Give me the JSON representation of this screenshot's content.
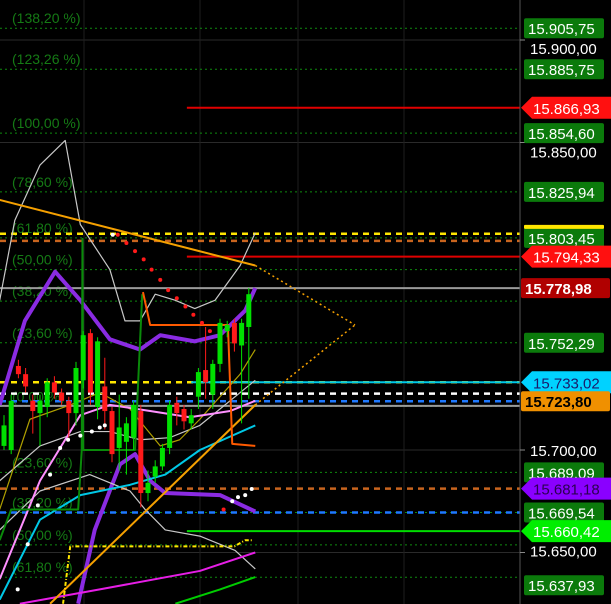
{
  "chart_data": {
    "type": "candlestick",
    "grid": true,
    "colors": {
      "background": "#000000",
      "up": "#00e000",
      "down": "#ff1a1a",
      "fib": "#0f8a0f",
      "fib_text": "#157a15",
      "axis_text": "#ffffff",
      "axis_line": "#555555"
    },
    "price_axis": {
      "ticks": [
        15900,
        15850,
        15700,
        15650
      ],
      "tick_labels": [
        "15.900,00",
        "15.850,00",
        "15.700,00",
        "15.650,00"
      ]
    },
    "candles_ohlc": [
      [
        15702,
        15717,
        15700,
        15712
      ],
      [
        15700,
        15727,
        15698,
        15724
      ],
      [
        15741,
        15744,
        15735,
        15737
      ],
      [
        15737,
        15740,
        15728,
        15731
      ],
      [
        15724,
        15727,
        15708,
        15719
      ],
      [
        15718,
        15727,
        15702,
        15724
      ],
      [
        15721,
        15735,
        15716,
        15733
      ],
      [
        15733,
        15736,
        15725,
        15728
      ],
      [
        15728,
        15730,
        15722,
        15724
      ],
      [
        15724,
        15726,
        15706,
        15718
      ],
      [
        15718,
        15743,
        15712,
        15740
      ],
      [
        15734,
        15758,
        15730,
        15756
      ],
      [
        15757,
        15759,
        15722,
        15728
      ],
      [
        15721,
        15755,
        15715,
        15753
      ],
      [
        15731,
        15745,
        15710,
        15719
      ],
      [
        15719,
        15721,
        15694,
        15698
      ],
      [
        15701,
        15727,
        15690,
        15711
      ],
      [
        15704,
        15716,
        15688,
        15713
      ],
      [
        15706,
        15724,
        15700,
        15722
      ],
      [
        15719,
        15722,
        15672,
        15679
      ],
      [
        15679,
        15690,
        15675,
        15684
      ],
      [
        15687,
        15695,
        15684,
        15692
      ],
      [
        15692,
        15703,
        15690,
        15701
      ],
      [
        15701,
        15724,
        15698,
        15722
      ],
      [
        15723,
        15726,
        15712,
        15718
      ],
      [
        15720,
        15722,
        15710,
        15714
      ],
      [
        15713,
        15720,
        15710,
        15717
      ],
      [
        15726,
        15740,
        15720,
        15738
      ],
      [
        15739,
        15760,
        15725,
        15733
      ],
      [
        15727,
        15744,
        15720,
        15742
      ],
      [
        15742,
        15764,
        15738,
        15762
      ],
      [
        15758,
        15763,
        15755,
        15761
      ],
      [
        15762,
        15764,
        15748,
        15752
      ],
      [
        15751,
        15764,
        15713,
        15762
      ],
      [
        15760,
        15779,
        15725,
        15776
      ]
    ],
    "fib_levels": [
      {
        "label": "(138,20 %)",
        "price": 15905.75
      },
      {
        "label": "(123,26 %)",
        "price": 15885.75
      },
      {
        "label": "(100,00 %)",
        "price": 15854.6
      },
      {
        "label": "(78,60 %)",
        "price": 15825.94
      },
      {
        "label": "(61,80 %)",
        "price": 15803.45
      },
      {
        "label": "(50,00 %)",
        "price": 15788.0
      },
      {
        "label": "(38,20 %)",
        "price": 15772.6
      },
      {
        "label": "(23,60 %)",
        "price": 15752.29
      },
      {
        "label": "(0,00 %)",
        "price": 15721.3
      },
      {
        "label": "(23,60 %)",
        "price": 15689.09
      },
      {
        "label": "(38,20 %)",
        "price": 15669.54
      },
      {
        "label": "(50,00 %)",
        "price": 15653.74
      },
      {
        "label": "(61,80 %)",
        "price": 15637.93
      }
    ],
    "horizontal_lines": [
      {
        "price": 15866.93,
        "color": "#e00000",
        "style": "solid",
        "from_bar": 25.4
      },
      {
        "price": 15794.33,
        "color": "#e00000",
        "style": "solid",
        "from_bar": 25.4
      },
      {
        "price": 15805.5,
        "color": "#ffe600",
        "style": "dashed",
        "from_bar": -1
      },
      {
        "price": 15802.0,
        "color": "#c8641e",
        "style": "dashed",
        "from_bar": -1
      },
      {
        "price": 15778.98,
        "color": "#9a9a9a",
        "style": "solid",
        "from_bar": -1
      },
      {
        "price": 15733.02,
        "color": "#ffe600",
        "style": "dashed",
        "from_bar": -1
      },
      {
        "price": 15733.02,
        "color": "#00c8e6",
        "style": "solid",
        "from_bar": 26
      },
      {
        "price": 15727.5,
        "color": "#ffffff",
        "style": "dashed",
        "from_bar": -1
      },
      {
        "price": 15723.8,
        "color": "#1e78ff",
        "style": "dashed",
        "from_bar": -1
      },
      {
        "price": 15721.5,
        "color": "#9a9a9a",
        "style": "solid",
        "from_bar": -1
      },
      {
        "price": 15681.18,
        "color": "#c8641e",
        "style": "dashed",
        "from_bar": -1
      },
      {
        "price": 15669.54,
        "color": "#1e78ff",
        "style": "dashed",
        "from_bar": -1
      },
      {
        "price": 15660.42,
        "color": "#00dd00",
        "style": "solid",
        "from_bar": 25.4
      }
    ],
    "indicator_lines": [
      {
        "color": "#8a2be2",
        "width": 4,
        "points": [
          [
            -0.6,
            15722
          ],
          [
            2.9,
            15763
          ],
          [
            7.1,
            15787
          ],
          [
            10.6,
            15773
          ],
          [
            14.7,
            15754
          ],
          [
            18.9,
            15749
          ],
          [
            21.7,
            15756
          ],
          [
            26.5,
            15753
          ],
          [
            30,
            15756
          ],
          [
            33.5,
            15768
          ],
          [
            34.9,
            15779
          ]
        ]
      },
      {
        "color": "#8a2be2",
        "width": 4,
        "points": [
          [
            10.3,
            15625
          ],
          [
            12.6,
            15661
          ],
          [
            16.1,
            15693
          ],
          [
            18.2,
            15698
          ],
          [
            20.3,
            15685
          ],
          [
            22.4,
            15679
          ],
          [
            30,
            15678
          ],
          [
            34.9,
            15670
          ]
        ]
      },
      {
        "color": "#c8c8c8",
        "width": 1.2,
        "points": [
          [
            -0.6,
            15773
          ],
          [
            1.5,
            15812
          ],
          [
            5,
            15839
          ],
          [
            8.5,
            15851
          ],
          [
            10.6,
            15810
          ],
          [
            14.7,
            15788
          ],
          [
            16.8,
            15763
          ],
          [
            18.9,
            15763
          ],
          [
            21,
            15776
          ],
          [
            23.8,
            15773
          ],
          [
            26.5,
            15769
          ],
          [
            29.3,
            15773
          ],
          [
            32.8,
            15790
          ],
          [
            34.9,
            15806
          ]
        ]
      },
      {
        "color": "#c8c8c8",
        "width": 1.2,
        "points": [
          [
            -0.6,
            15661
          ],
          [
            5,
            15680
          ],
          [
            11.9,
            15688
          ],
          [
            17.5,
            15680
          ],
          [
            19.6,
            15671
          ],
          [
            22.4,
            15661
          ],
          [
            27.2,
            15658
          ],
          [
            32.1,
            15651
          ],
          [
            34.9,
            15642
          ]
        ]
      },
      {
        "color": "#c8c8c8",
        "width": 1.2,
        "points": [
          [
            -0.6,
            15685
          ],
          [
            5,
            15702
          ],
          [
            10.6,
            15709
          ],
          [
            14.7,
            15709
          ],
          [
            18.9,
            15705
          ],
          [
            23,
            15706
          ],
          [
            27.2,
            15712
          ],
          [
            34.9,
            15734
          ]
        ]
      },
      {
        "color": "#b0a000",
        "width": 1.2,
        "points": [
          [
            -0.6,
            15671
          ],
          [
            3.6,
            15715
          ],
          [
            9.2,
            15722
          ],
          [
            13.3,
            15728
          ],
          [
            17.5,
            15720
          ],
          [
            21.7,
            15702
          ],
          [
            24.4,
            15705
          ],
          [
            27.2,
            15715
          ],
          [
            32.8,
            15737
          ],
          [
            34.9,
            15749
          ]
        ]
      },
      {
        "color": "#00c8e6",
        "width": 2,
        "points": [
          [
            -0.6,
            15627
          ],
          [
            5,
            15666
          ],
          [
            10.6,
            15678
          ],
          [
            17.5,
            15683
          ],
          [
            22.4,
            15688
          ],
          [
            27.2,
            15700
          ],
          [
            34.9,
            15712
          ]
        ]
      },
      {
        "color": "#ff90ff",
        "width": 2,
        "points": [
          [
            -0.6,
            15637
          ],
          [
            5,
            15685
          ],
          [
            10.6,
            15717
          ],
          [
            14.7,
            15722
          ],
          [
            20.3,
            15719
          ],
          [
            25.8,
            15716
          ],
          [
            31.4,
            15719
          ],
          [
            34.9,
            15724
          ]
        ]
      },
      {
        "color": "#e61ee6",
        "width": 2,
        "points": [
          [
            2.2,
            15625
          ],
          [
            13.3,
            15632
          ],
          [
            27.2,
            15641
          ],
          [
            34.9,
            15650
          ]
        ]
      },
      {
        "color": "#00cc00",
        "width": 2,
        "points": [
          [
            23.8,
            15625
          ],
          [
            30,
            15632
          ],
          [
            34.9,
            15638
          ]
        ]
      },
      {
        "color": "#f5a000",
        "width": 2,
        "points": [
          [
            -0.6,
            15822
          ],
          [
            34.9,
            15790
          ]
        ]
      },
      {
        "color": "#f5a000",
        "width": 2,
        "points": [
          [
            6.4,
            15625
          ],
          [
            34.9,
            15722
          ]
        ]
      },
      {
        "color": "#f5a000",
        "width": 1.5,
        "dash": "2,3",
        "points": [
          [
            34.9,
            15790
          ],
          [
            48.75,
            15761
          ]
        ]
      },
      {
        "color": "#f5a000",
        "width": 1.5,
        "dash": "2,3",
        "points": [
          [
            34.9,
            15722
          ],
          [
            48.75,
            15761
          ]
        ]
      },
      {
        "color": "#0a8a0a",
        "width": 2,
        "points": [
          [
            -0.6,
            15656
          ],
          [
            1,
            15671
          ],
          [
            10.3,
            15671
          ],
          [
            10.8,
            15700
          ],
          [
            10.9,
            15803
          ],
          [
            11,
            15700
          ],
          [
            18.2,
            15700
          ],
          [
            19.2,
            15776
          ]
        ]
      },
      {
        "color": "#ff5a00",
        "width": 2,
        "points": [
          [
            19.3,
            15777
          ],
          [
            20.3,
            15761
          ],
          [
            31.1,
            15761
          ],
          [
            31.7,
            15703
          ],
          [
            34.9,
            15702
          ]
        ]
      },
      {
        "color": "#ffe600",
        "width": 2,
        "dash": "4,2,1,2",
        "points": [
          [
            8.2,
            15625
          ],
          [
            9.2,
            15653
          ],
          [
            32,
            15653
          ],
          [
            33.5,
            15656
          ],
          [
            34.5,
            15656
          ]
        ]
      }
    ],
    "sar_dots_red": [
      [
        15.8,
        15805
      ],
      [
        17,
        15801
      ],
      [
        18.2,
        15797
      ],
      [
        19.4,
        15793
      ],
      [
        20.5,
        15788
      ],
      [
        21.7,
        15783
      ],
      [
        22.8,
        15778
      ],
      [
        24,
        15774
      ],
      [
        25.2,
        15770
      ],
      [
        26.3,
        15766
      ],
      [
        27.5,
        15762
      ],
      [
        28.6,
        15758
      ],
      [
        30.5,
        15671
      ]
    ],
    "sar_dots_white": [
      [
        1.9,
        15632
      ],
      [
        3.3,
        15654
      ],
      [
        4.7,
        15673
      ],
      [
        6.4,
        15688
      ],
      [
        7.8,
        15701
      ],
      [
        8.9,
        15705
      ],
      [
        10.6,
        15707
      ],
      [
        12.2,
        15709
      ],
      [
        13.3,
        15711
      ],
      [
        14,
        15712
      ],
      [
        15.1,
        15805
      ],
      [
        31.7,
        15675
      ],
      [
        32.5,
        15677
      ],
      [
        33.5,
        15678
      ],
      [
        34.4,
        15681
      ]
    ],
    "price_labels": [
      {
        "text": "15.905,75",
        "price": 15905.75,
        "bg": "#0b7a0b",
        "fg": "#ffffff",
        "shape": "box"
      },
      {
        "text": "15.885,75",
        "price": 15885.75,
        "bg": "#0b7a0b",
        "fg": "#ffffff",
        "shape": "box"
      },
      {
        "text": "15.866,93",
        "price": 15866.93,
        "bg": "#ff1010",
        "fg": "#ffffff",
        "shape": "arrow"
      },
      {
        "text": "15.854,60",
        "price": 15854.6,
        "bg": "#0b7a0b",
        "fg": "#ffffff",
        "shape": "box"
      },
      {
        "text": "15.825,94",
        "price": 15825.94,
        "bg": "#0b7a0b",
        "fg": "#ffffff",
        "shape": "box"
      },
      {
        "text": "15.803,45",
        "price": 15803.45,
        "bg": "#0b7a0b",
        "fg": "#ffffff",
        "shape": "box",
        "top_border": "#ffe600"
      },
      {
        "text": "15.794,33",
        "price": 15794.33,
        "bg": "#ff1010",
        "fg": "#ffffff",
        "shape": "arrow"
      },
      {
        "text": "15.778,98",
        "price": 15778.98,
        "bg": "#b00000",
        "fg": "#ffffff",
        "shape": "box",
        "bold": true
      },
      {
        "text": "15.752,29",
        "price": 15752.29,
        "bg": "#0b7a0b",
        "fg": "#ffffff",
        "shape": "box"
      },
      {
        "text": "15.733,02",
        "price": 15733.02,
        "bg": "#00d2ff",
        "fg": "#1a1a6a",
        "shape": "arrow"
      },
      {
        "text": "15.723,80",
        "price": 15723.8,
        "bg": "#f09000",
        "fg": "#000000",
        "shape": "box",
        "bold": true
      },
      {
        "text": "15.689,09",
        "price": 15689.09,
        "bg": "#0b7a0b",
        "fg": "#ffffff",
        "shape": "box"
      },
      {
        "text": "15.681,18",
        "price": 15681.18,
        "bg": "#8a00ff",
        "fg": "#2a0050",
        "shape": "arrow"
      },
      {
        "text": "15.669,54",
        "price": 15669.54,
        "bg": "#0b7a0b",
        "fg": "#ffffff",
        "shape": "box"
      },
      {
        "text": "15.660,42",
        "price": 15660.42,
        "bg": "#00ee00",
        "fg": "#ffffff",
        "shape": "arrow"
      },
      {
        "text": "15.637,93",
        "price": 15637.93,
        "bg": "#0b7a0b",
        "fg": "#ffffff",
        "shape": "box"
      }
    ]
  }
}
